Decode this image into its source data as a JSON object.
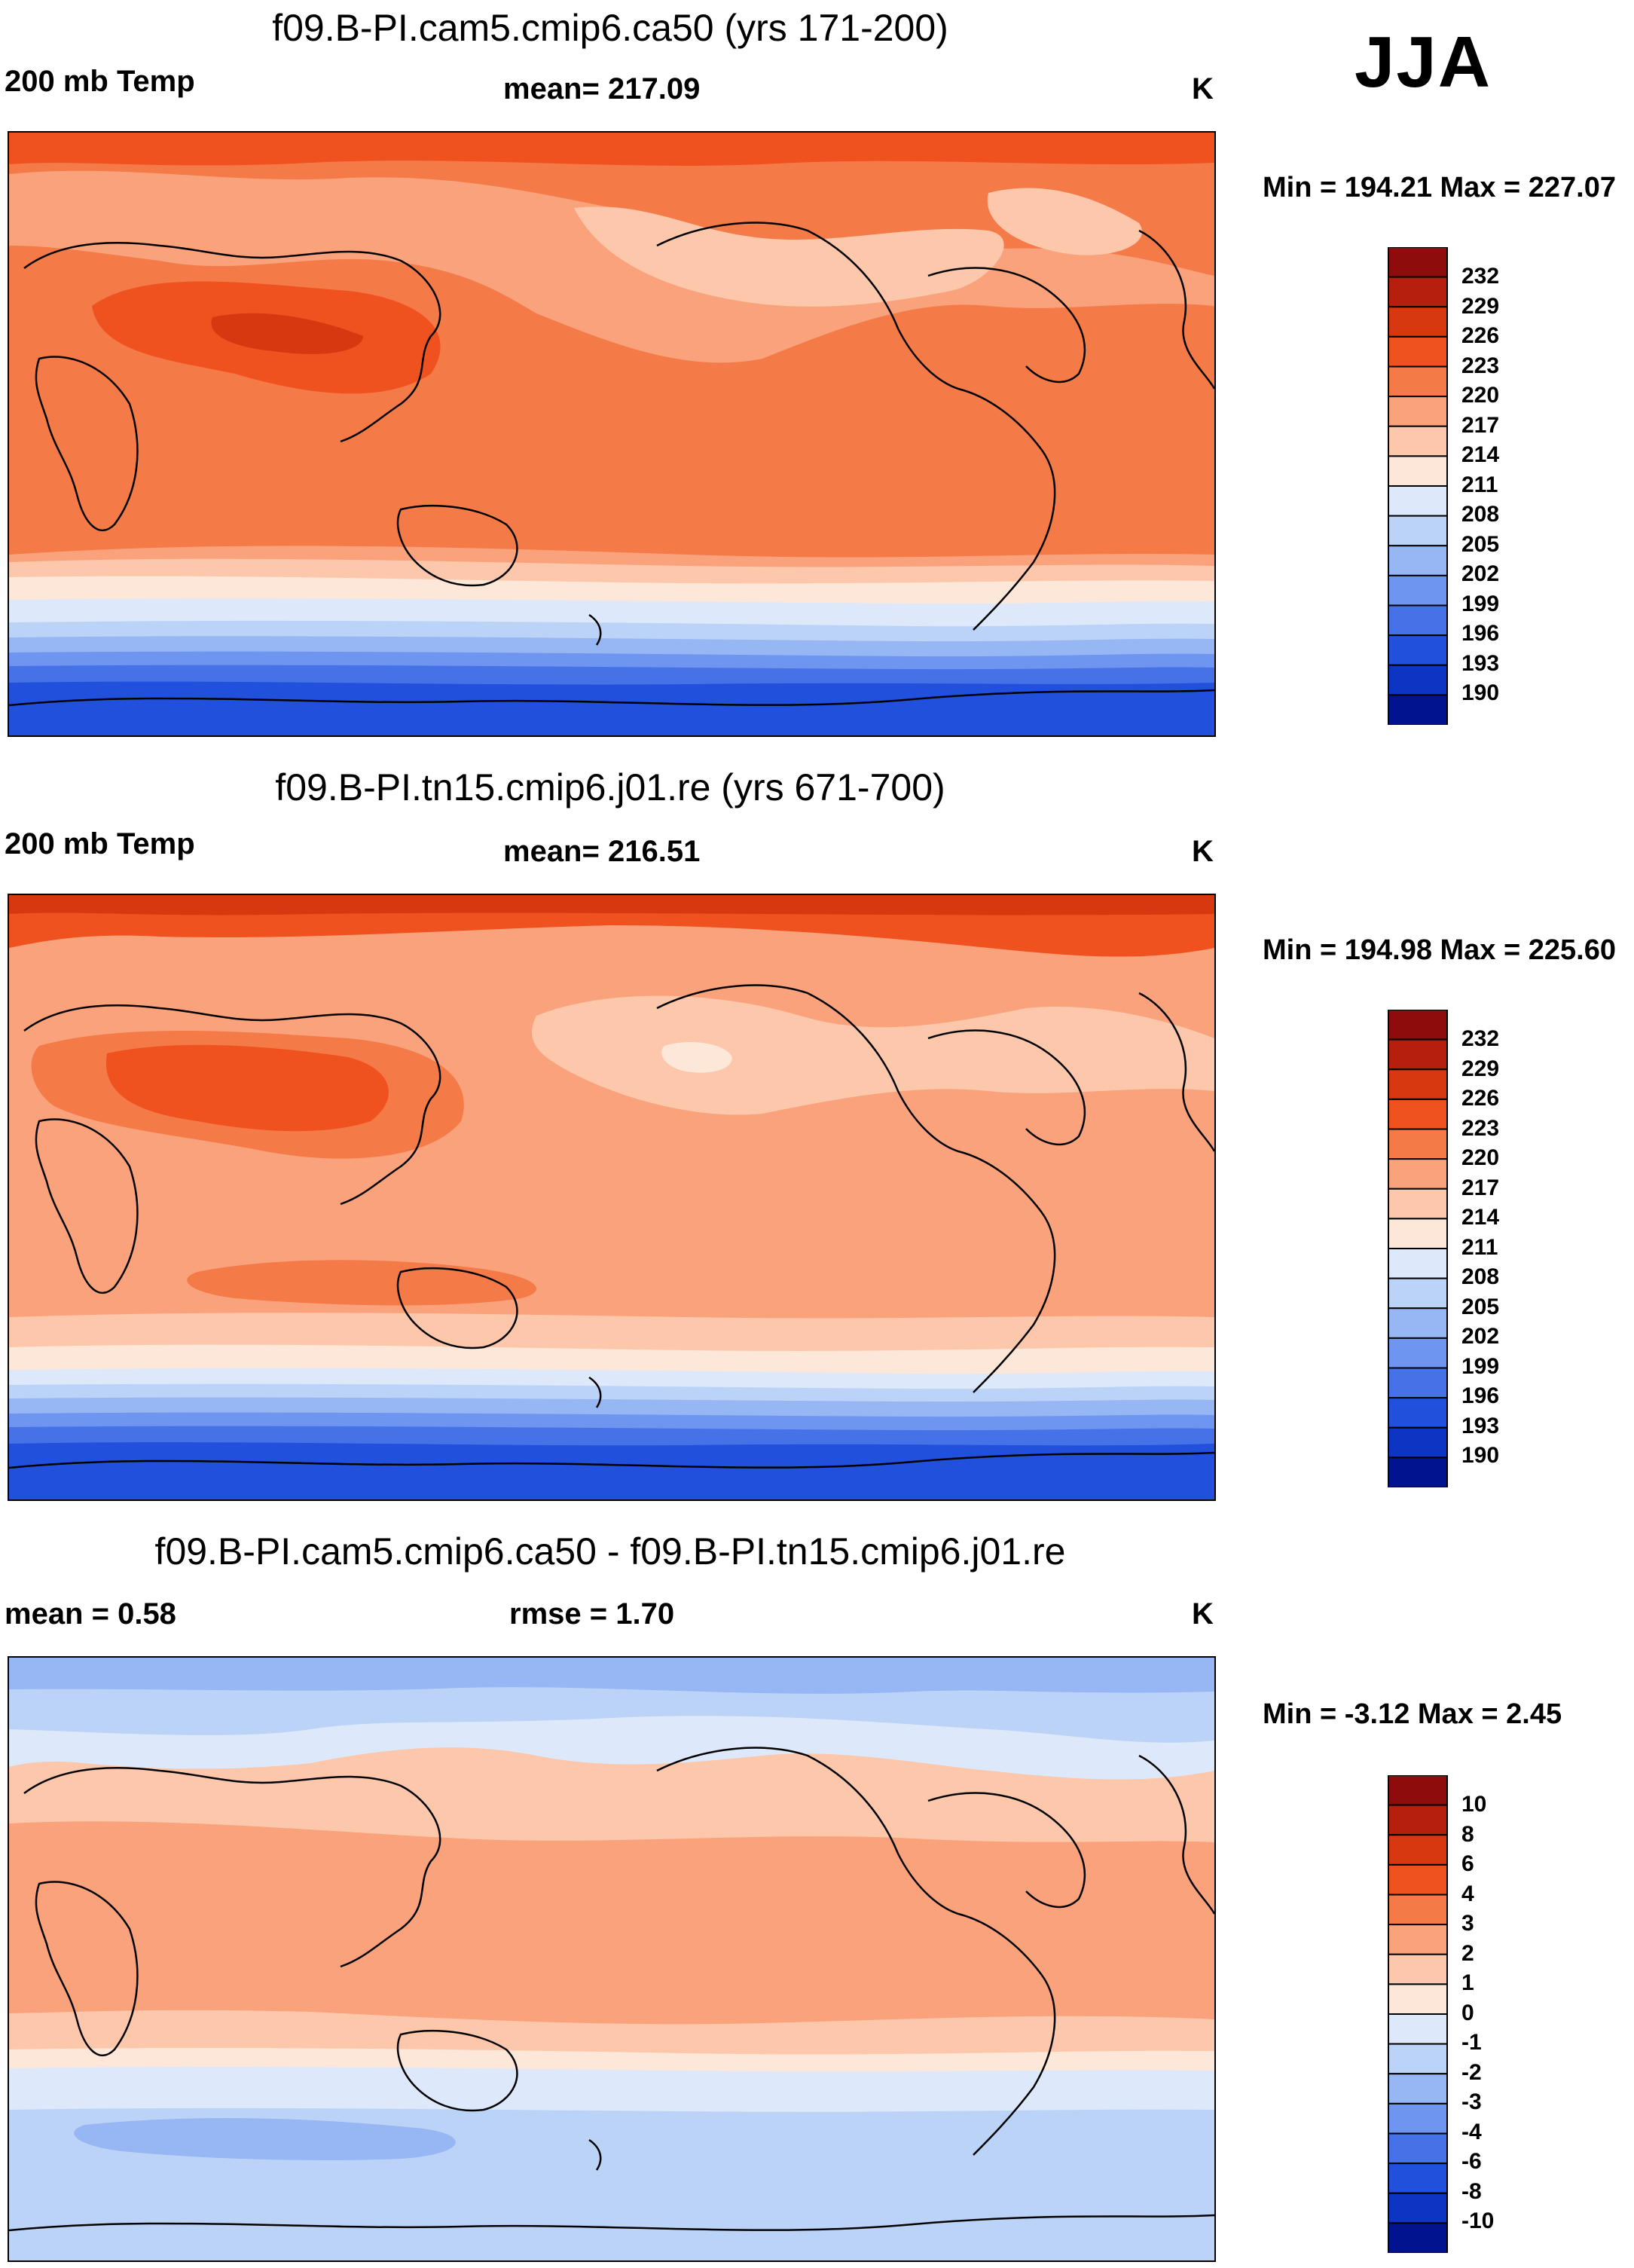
{
  "season": "JJA",
  "panels": [
    {
      "title": "f09.B-PI.cam5.cmip6.ca50 (yrs 171-200)",
      "left_label": "200 mb Temp",
      "center_label": "mean= 217.09",
      "units": "K",
      "minmax": "Min = 194.21 Max = 227.07",
      "colorbar_labels": [
        "232",
        "229",
        "226",
        "223",
        "220",
        "217",
        "214",
        "211",
        "208",
        "205",
        "202",
        "199",
        "196",
        "193",
        "190"
      ]
    },
    {
      "title": "f09.B-PI.tn15.cmip6.j01.re (yrs 671-700)",
      "left_label": "200 mb Temp",
      "center_label": "mean= 216.51",
      "units": "K",
      "minmax": "Min = 194.98 Max = 225.60",
      "colorbar_labels": [
        "232",
        "229",
        "226",
        "223",
        "220",
        "217",
        "214",
        "211",
        "208",
        "205",
        "202",
        "199",
        "196",
        "193",
        "190"
      ]
    },
    {
      "title": "f09.B-PI.cam5.cmip6.ca50 - f09.B-PI.tn15.cmip6.j01.re",
      "left_label": "mean =   0.58",
      "center_label": "rmse =   1.70",
      "units": "K",
      "minmax": "Min =  -3.12 Max =   2.45",
      "colorbar_labels": [
        "10",
        "8",
        "6",
        "4",
        "3",
        "2",
        "1",
        "0",
        "-1",
        "-2",
        "-3",
        "-4",
        "-6",
        "-8",
        "-10"
      ]
    }
  ],
  "colors": {
    "scale": [
      "#8e0c0c",
      "#b5200e",
      "#d8380f",
      "#f0521f",
      "#f47a48",
      "#f9a27c",
      "#fcc7ab",
      "#fde7d8",
      "#dde9fb",
      "#bcd3f8",
      "#96b6f4",
      "#6e95ef",
      "#4672e8",
      "#2150dc",
      "#0d34c2",
      "#02138f"
    ]
  }
}
